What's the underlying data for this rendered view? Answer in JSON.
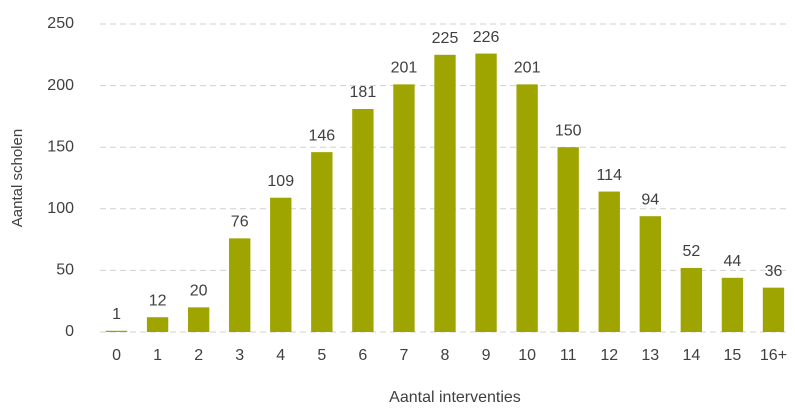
{
  "chart_data": {
    "type": "bar",
    "x_label": "Aantal interventies",
    "y_label": "Aantal scholen",
    "categories": [
      "0",
      "1",
      "2",
      "3",
      "4",
      "5",
      "6",
      "7",
      "8",
      "9",
      "10",
      "11",
      "12",
      "13",
      "14",
      "15",
      "16+"
    ],
    "values": [
      1,
      12,
      20,
      76,
      109,
      146,
      181,
      201,
      225,
      226,
      201,
      150,
      114,
      94,
      52,
      44,
      36
    ],
    "color": "#9ea400",
    "ylim": [
      0,
      250
    ],
    "yticks": [
      0,
      50,
      100,
      150,
      200,
      250
    ],
    "grid": true
  }
}
